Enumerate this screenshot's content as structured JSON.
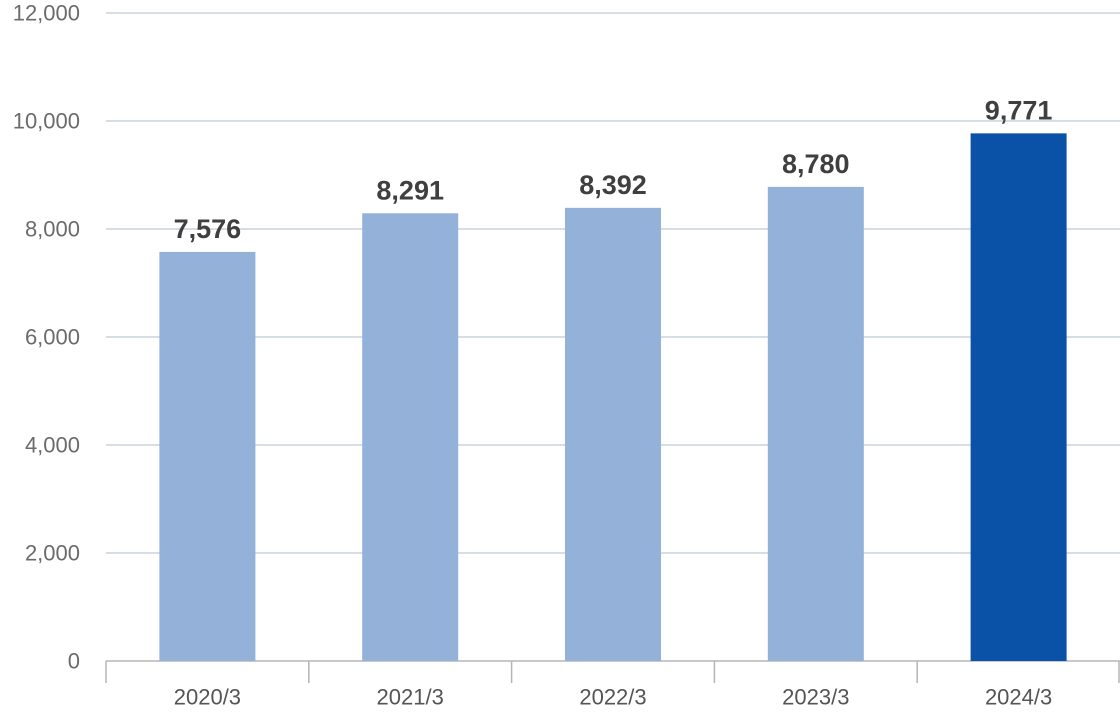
{
  "chart_data": {
    "type": "bar",
    "title": "",
    "xlabel": "",
    "ylabel": "",
    "categories": [
      "2020/3",
      "2021/3",
      "2022/3",
      "2023/3",
      "2024/3"
    ],
    "values": [
      7576,
      8291,
      8392,
      8780,
      9771
    ],
    "value_labels": [
      "7,576",
      "8,291",
      "8,392",
      "8,780",
      "9,771"
    ],
    "ylim": [
      0,
      12000
    ],
    "yticks": [
      0,
      2000,
      4000,
      6000,
      8000,
      10000,
      12000
    ],
    "ytick_labels": [
      "0",
      "2,000",
      "4,000",
      "6,000",
      "8,000",
      "10,000",
      "12,000"
    ],
    "grid": true,
    "highlight_index": 4,
    "colors": {
      "bar": "#93b1d9",
      "bar_highlight": "#0a52a8",
      "label": "#3f3f3f",
      "label_highlight": "#0a52a8",
      "grid": "#c9d3dc",
      "axis": "#b5b5b5"
    }
  }
}
